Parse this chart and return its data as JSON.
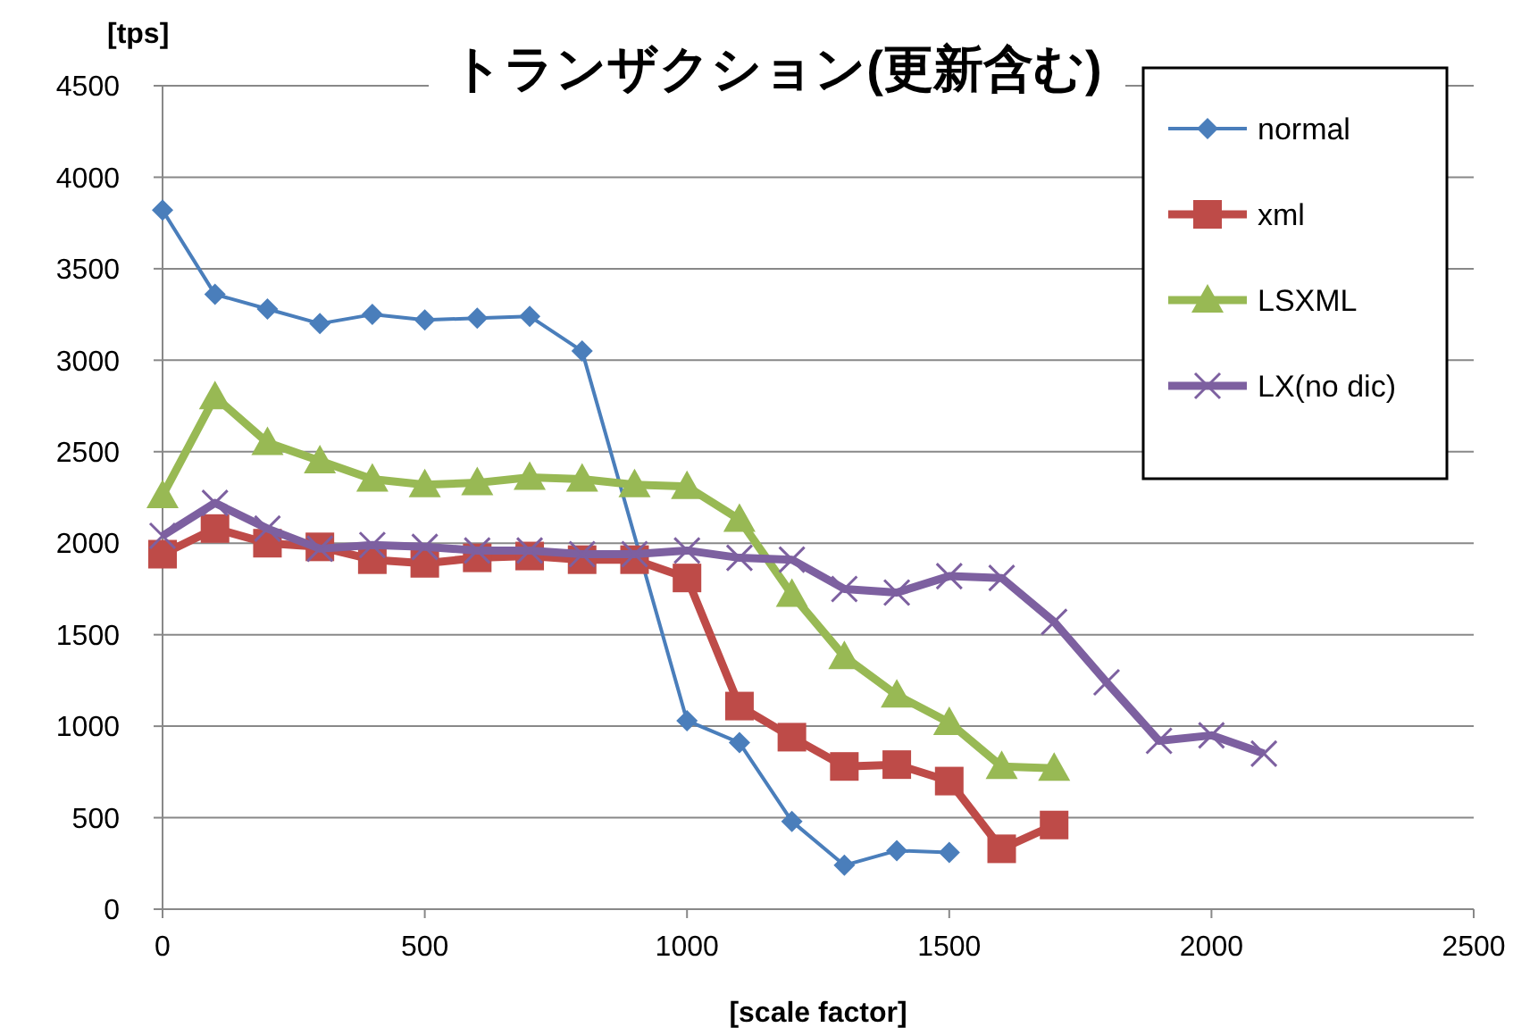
{
  "chart_data": {
    "type": "line",
    "title": "トランザクション(更新含む)",
    "xlabel": "[scale factor]",
    "ylabel": "[tps]",
    "xlim": [
      0,
      2500
    ],
    "xticks": [
      0,
      500,
      1000,
      1500,
      2000,
      2500
    ],
    "ylim": [
      0,
      4500
    ],
    "yticks": [
      0,
      500,
      1000,
      1500,
      2000,
      2500,
      3000,
      3500,
      4000,
      4500
    ],
    "grid": "y",
    "legend": "top right",
    "series": [
      {
        "name": "normal",
        "color": "#4a7ebb",
        "marker": "diamond",
        "x": [
          0,
          100,
          200,
          300,
          400,
          500,
          600,
          700,
          800,
          1000,
          1100,
          1200,
          1300,
          1400,
          1500
        ],
        "values": [
          3820,
          3360,
          3280,
          3200,
          3250,
          3220,
          3230,
          3240,
          3050,
          1030,
          910,
          480,
          240,
          320,
          310
        ]
      },
      {
        "name": "xml",
        "color": "#be4b48",
        "marker": "square",
        "x": [
          0,
          100,
          200,
          300,
          400,
          500,
          600,
          700,
          800,
          900,
          1000,
          1100,
          1200,
          1300,
          1400,
          1500,
          1600,
          1700
        ],
        "values": [
          1940,
          2080,
          2000,
          1980,
          1910,
          1890,
          1920,
          1930,
          1910,
          1910,
          1810,
          1110,
          940,
          780,
          790,
          700,
          330,
          460
        ]
      },
      {
        "name": "LSXML",
        "color": "#98b954",
        "marker": "triangle",
        "x": [
          0,
          100,
          200,
          300,
          400,
          500,
          600,
          700,
          800,
          900,
          1000,
          1100,
          1200,
          1300,
          1400,
          1500,
          1600,
          1700
        ],
        "values": [
          2260,
          2800,
          2550,
          2450,
          2350,
          2320,
          2330,
          2360,
          2350,
          2320,
          2310,
          2130,
          1720,
          1380,
          1170,
          1020,
          780,
          770
        ]
      },
      {
        "name": "LX(no dic)",
        "color": "#7d60a0",
        "marker": "cross",
        "x": [
          0,
          100,
          200,
          300,
          400,
          500,
          600,
          700,
          800,
          900,
          1000,
          1100,
          1200,
          1300,
          1400,
          1500,
          1600,
          1700,
          1800,
          1900,
          2000,
          2100
        ],
        "values": [
          2040,
          2220,
          2080,
          1970,
          1990,
          1980,
          1960,
          1960,
          1940,
          1940,
          1960,
          1920,
          1910,
          1750,
          1730,
          1820,
          1810,
          1570,
          1240,
          920,
          950,
          850
        ]
      }
    ]
  }
}
